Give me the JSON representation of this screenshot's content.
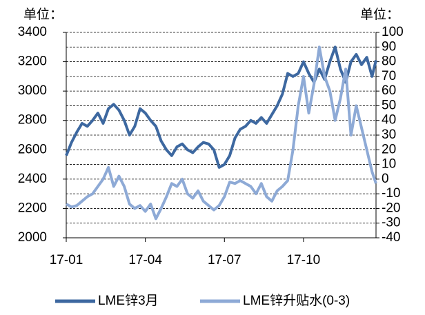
{
  "chart_data": {
    "type": "line",
    "left_unit": "单位：",
    "right_unit": "单位：",
    "x": [
      0,
      0.2,
      0.4,
      0.6,
      0.8,
      1.0,
      1.2,
      1.4,
      1.6,
      1.8,
      2.0,
      2.2,
      2.4,
      2.6,
      2.8,
      3.0,
      3.2,
      3.4,
      3.6,
      3.8,
      4.0,
      4.2,
      4.4,
      4.6,
      4.8,
      5.0,
      5.2,
      5.4,
      5.6,
      5.8,
      6.0,
      6.2,
      6.4,
      6.6,
      6.8,
      7.0,
      7.2,
      7.4,
      7.6,
      7.8,
      8.0,
      8.2,
      8.4,
      8.6,
      8.8,
      9.0,
      9.2,
      9.4,
      9.6,
      9.8,
      10.0,
      10.2,
      10.4,
      10.6,
      10.8,
      11.0,
      11.2,
      11.4,
      11.6,
      11.75
    ],
    "xlim": [
      0,
      11.75
    ],
    "xticks": [
      {
        "value": 0,
        "label": "17-01"
      },
      {
        "value": 3,
        "label": "17-04"
      },
      {
        "value": 6,
        "label": "17-07"
      },
      {
        "value": 9,
        "label": "17-10"
      }
    ],
    "ylim": [
      2000,
      3400
    ],
    "yticks": [
      2000,
      2200,
      2400,
      2600,
      2800,
      3000,
      3200,
      3400
    ],
    "y2lim": [
      -40,
      100
    ],
    "y2ticks": [
      -40,
      -30,
      -20,
      -10,
      0,
      10,
      20,
      30,
      40,
      50,
      60,
      70,
      80,
      90,
      100
    ],
    "grid": true,
    "series": [
      {
        "name": "LME锌3月",
        "color": "#3d68a0",
        "values": [
          2560,
          2650,
          2720,
          2780,
          2760,
          2800,
          2850,
          2780,
          2880,
          2910,
          2870,
          2800,
          2700,
          2760,
          2880,
          2850,
          2800,
          2760,
          2660,
          2600,
          2560,
          2620,
          2640,
          2600,
          2580,
          2620,
          2650,
          2640,
          2600,
          2480,
          2500,
          2560,
          2680,
          2740,
          2760,
          2800,
          2780,
          2820,
          2780,
          2840,
          2900,
          2980,
          3120,
          3100,
          3120,
          3200,
          3120,
          3060,
          3150,
          3080,
          3200,
          3300,
          3150,
          3060,
          3200,
          3250,
          3180,
          3230,
          3100,
          3210
        ]
      },
      {
        "name": "LME锌升贴水(0-3)",
        "color": "#8eaad6",
        "axis": "y2",
        "values": [
          -17,
          -19,
          -18,
          -15,
          -12,
          -10,
          -5,
          0,
          8,
          -5,
          2,
          -5,
          -17,
          -20,
          -18,
          -22,
          -17,
          -27,
          -20,
          -12,
          -3,
          -5,
          0,
          -10,
          -13,
          -8,
          -15,
          -18,
          -21,
          -18,
          -12,
          -2,
          -3,
          -1,
          -3,
          -5,
          -10,
          -3,
          -12,
          -15,
          -8,
          -5,
          -1,
          20,
          50,
          70,
          45,
          65,
          90,
          70,
          60,
          40,
          55,
          75,
          30,
          50,
          35,
          20,
          5,
          -3
        ]
      }
    ]
  }
}
